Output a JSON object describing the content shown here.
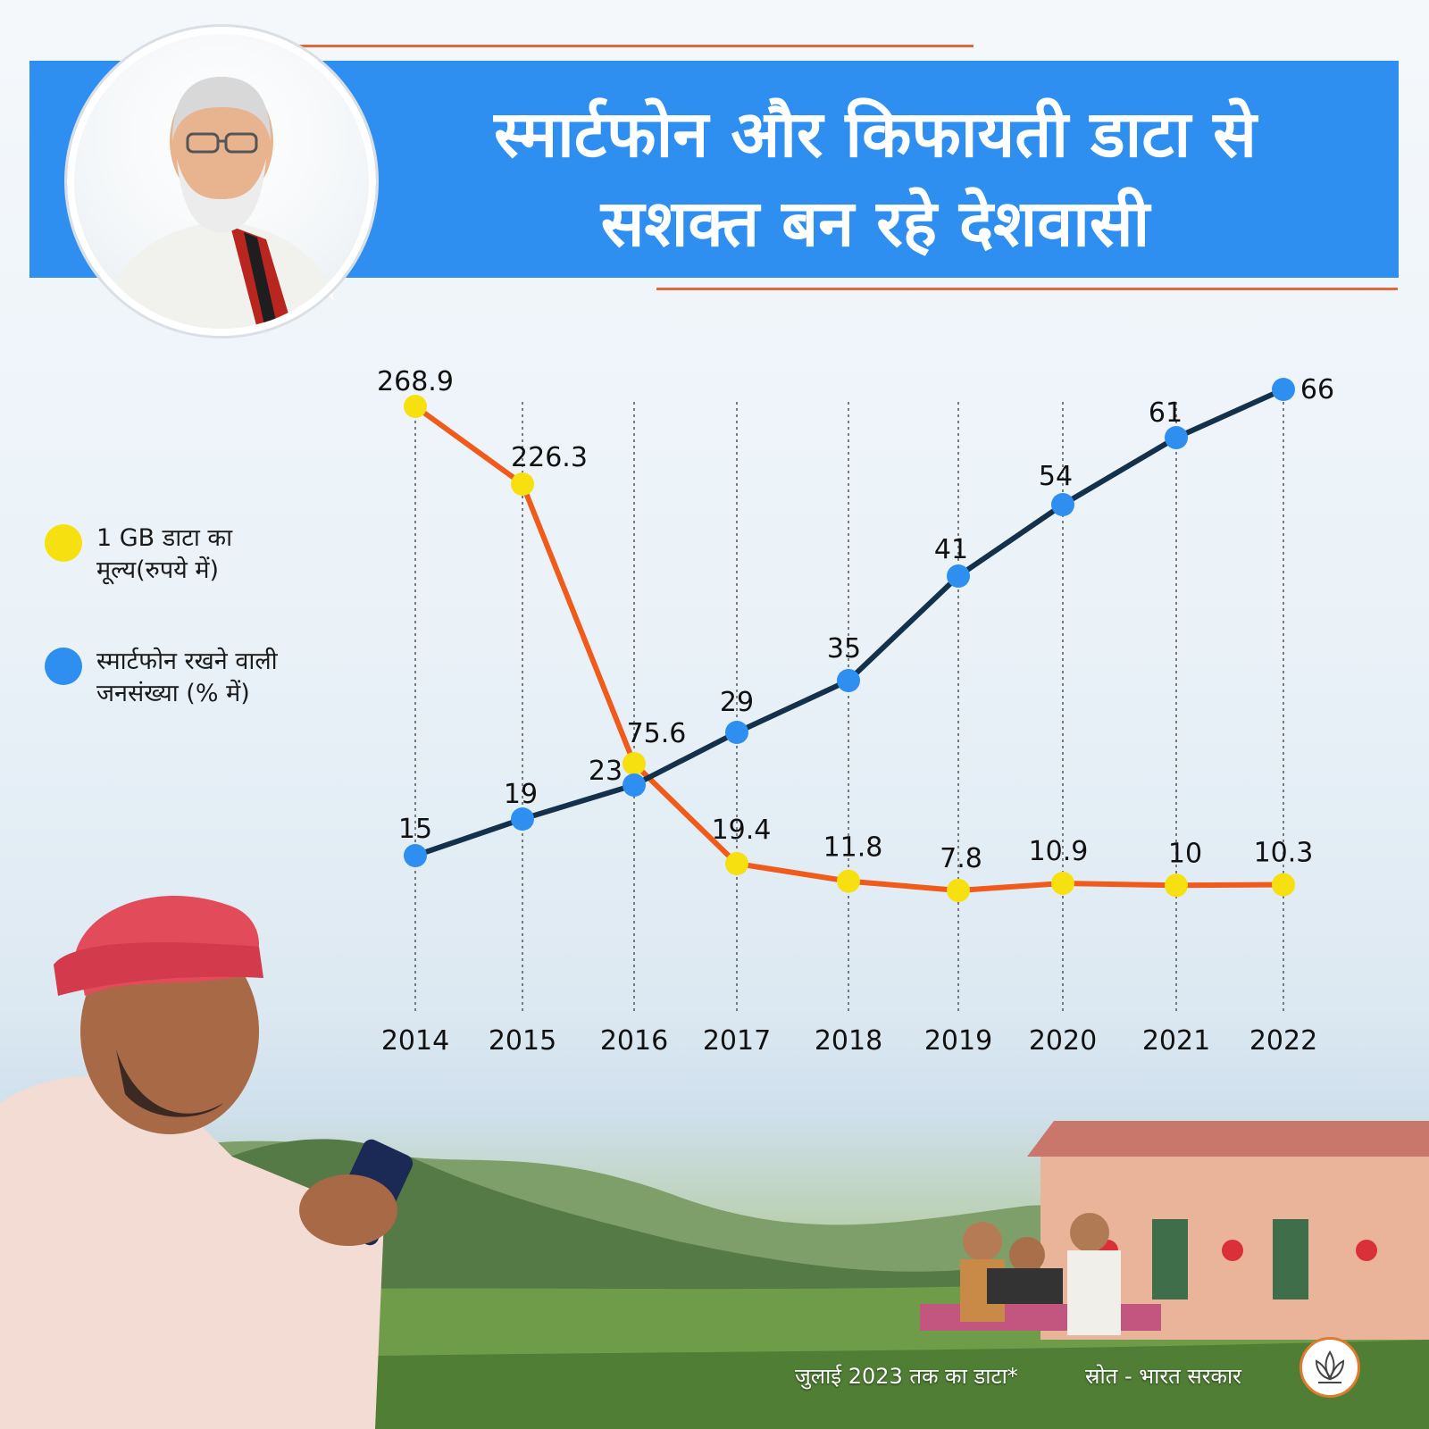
{
  "header": {
    "title_line1": "स्मार्टफोन और किफायती डाटा से",
    "title_line2": "सशक्त बन रहे देशवासी"
  },
  "legend": {
    "items": [
      {
        "label_line1": "1 GB डाटा का",
        "label_line2": "मूल्य(रुपये में)",
        "color": "#f7e010"
      },
      {
        "label_line1": "स्मार्टफोन रखने वाली",
        "label_line2": "जनसंख्या (% में)",
        "color": "#2f8ff0"
      }
    ]
  },
  "chart_data": {
    "type": "line",
    "categories": [
      "2014",
      "2015",
      "2016",
      "2017",
      "2018",
      "2019",
      "2020",
      "2021",
      "2022"
    ],
    "grid": "vertical dotted",
    "series": [
      {
        "name": "1 GB डाटा का मूल्य(रुपये में)",
        "values": [
          268.9,
          226.3,
          75.6,
          19.4,
          11.8,
          7.8,
          10.9,
          10,
          10.3
        ],
        "labels": [
          "268.9",
          "226.3",
          "75.6",
          "19.4",
          "11.8",
          "7.8",
          "10.9",
          "10",
          "10.3"
        ],
        "line_color": "#f05a1a",
        "marker_color": "#f7e010"
      },
      {
        "name": "स्मार्टफोन रखने वाली जनसंख्या (% में)",
        "values": [
          15,
          19,
          23,
          29,
          35,
          41,
          54,
          61,
          66
        ],
        "labels": [
          "15",
          "19",
          "23",
          "29",
          "35",
          "41",
          "54",
          "61",
          "66"
        ],
        "line_color": "#13314a",
        "marker_color": "#2f8ff0"
      }
    ]
  },
  "footer": {
    "note": "जुलाई 2023 तक का डाटा*",
    "source": "स्रोत - भारत सरकार"
  },
  "icons": {
    "portrait": "man-portrait-image",
    "farmer": "farmer-with-phone-image",
    "scene": "village-landscape-image",
    "logo": "lotus-logo-icon"
  }
}
